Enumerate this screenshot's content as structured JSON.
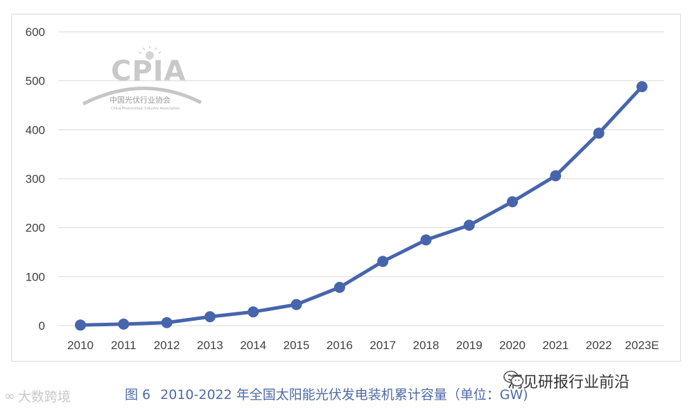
{
  "chart_data": {
    "type": "line",
    "categories": [
      "2010",
      "2011",
      "2012",
      "2013",
      "2014",
      "2015",
      "2016",
      "2017",
      "2018",
      "2019",
      "2020",
      "2021",
      "2022",
      "2023E"
    ],
    "series": [
      {
        "values": [
          1,
          3,
          6,
          18,
          28,
          43,
          78,
          131,
          175,
          205,
          253,
          306,
          393,
          488
        ],
        "color": "#4765ad"
      }
    ],
    "yticks": [
      "0",
      "100",
      "200",
      "300",
      "400",
      "500",
      "600"
    ],
    "ylim": [
      0,
      600
    ],
    "grid": true,
    "legend": "none"
  },
  "caption": {
    "fig_label": "图 6",
    "text": "2010-2022 年全国太阳能光伏发电装机累计容量（单位：GW)"
  },
  "logo": {
    "abbr": "CPIA",
    "name_cn": "中国光伏行业协会",
    "name_en": "China Photovoltaic Industry Association"
  },
  "watermark_left": {
    "text": "大数跨境",
    "icon": "infinity-loop-icon"
  },
  "watermark_right": {
    "text": "洞见研报行业前沿",
    "icon": "wechat-icon"
  }
}
